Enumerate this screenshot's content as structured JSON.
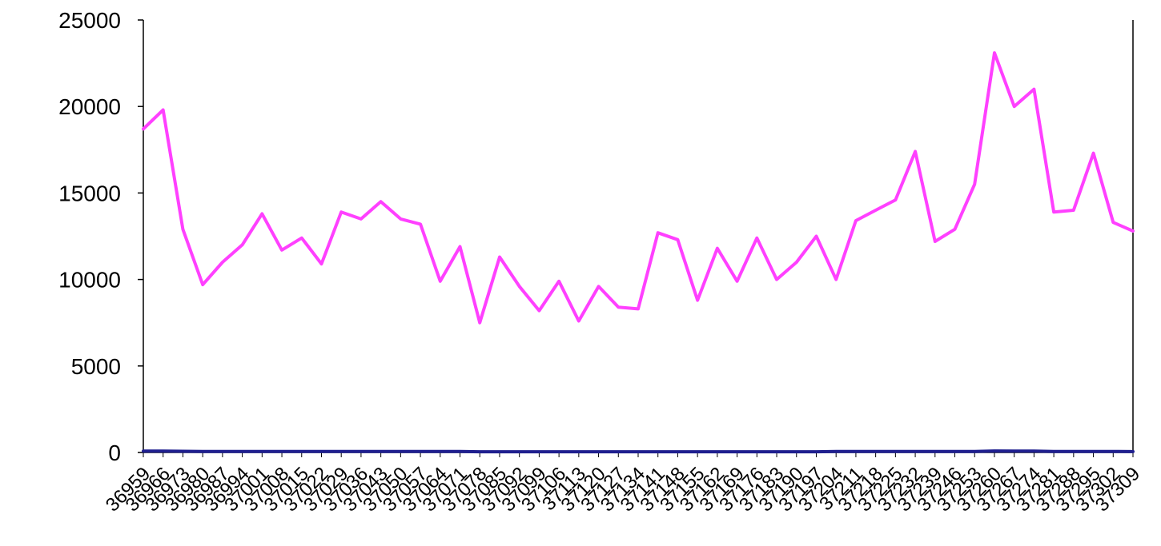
{
  "chart_data": {
    "type": "line",
    "title": "",
    "xlabel": "",
    "ylabel": "",
    "ylim": [
      0,
      25000
    ],
    "yticks": [
      0,
      5000,
      10000,
      15000,
      20000,
      25000
    ],
    "grid": false,
    "legend": "none",
    "x": [
      36959,
      36966,
      36973,
      36980,
      36987,
      36994,
      37001,
      37008,
      37015,
      37022,
      37029,
      37036,
      37043,
      37050,
      37057,
      37064,
      37071,
      37078,
      37085,
      37092,
      37099,
      37106,
      37113,
      37120,
      37127,
      37134,
      37141,
      37148,
      37155,
      37162,
      37169,
      37176,
      37183,
      37190,
      37197,
      37204,
      37211,
      37218,
      37225,
      37232,
      37239,
      37246,
      37253,
      37260,
      37267,
      37274,
      37281,
      37288,
      37295,
      37302,
      37309
    ],
    "series": [
      {
        "color": "#ff40ff",
        "values": [
          18700,
          19800,
          12900,
          9700,
          11000,
          12000,
          13800,
          11700,
          12400,
          10900,
          13900,
          13500,
          14500,
          13500,
          13200,
          9900,
          11900,
          7500,
          11300,
          9600,
          8200,
          9900,
          7600,
          9600,
          8400,
          8300,
          12700,
          12300,
          8800,
          11800,
          9900,
          12400,
          10000,
          11000,
          12500,
          10000,
          13400,
          14000,
          14600,
          17400,
          12200,
          12900,
          15500,
          23100,
          20000,
          21000,
          13900,
          14000,
          17300,
          13300,
          12800
        ]
      },
      {
        "color": "#1f1f8f",
        "values": [
          80,
          80,
          70,
          60,
          60,
          60,
          60,
          60,
          60,
          60,
          60,
          60,
          60,
          60,
          60,
          60,
          60,
          40,
          40,
          40,
          40,
          40,
          40,
          40,
          40,
          40,
          40,
          40,
          40,
          40,
          40,
          40,
          40,
          40,
          40,
          60,
          60,
          60,
          60,
          60,
          60,
          60,
          60,
          90,
          80,
          80,
          60,
          60,
          60,
          60,
          50
        ]
      }
    ]
  }
}
